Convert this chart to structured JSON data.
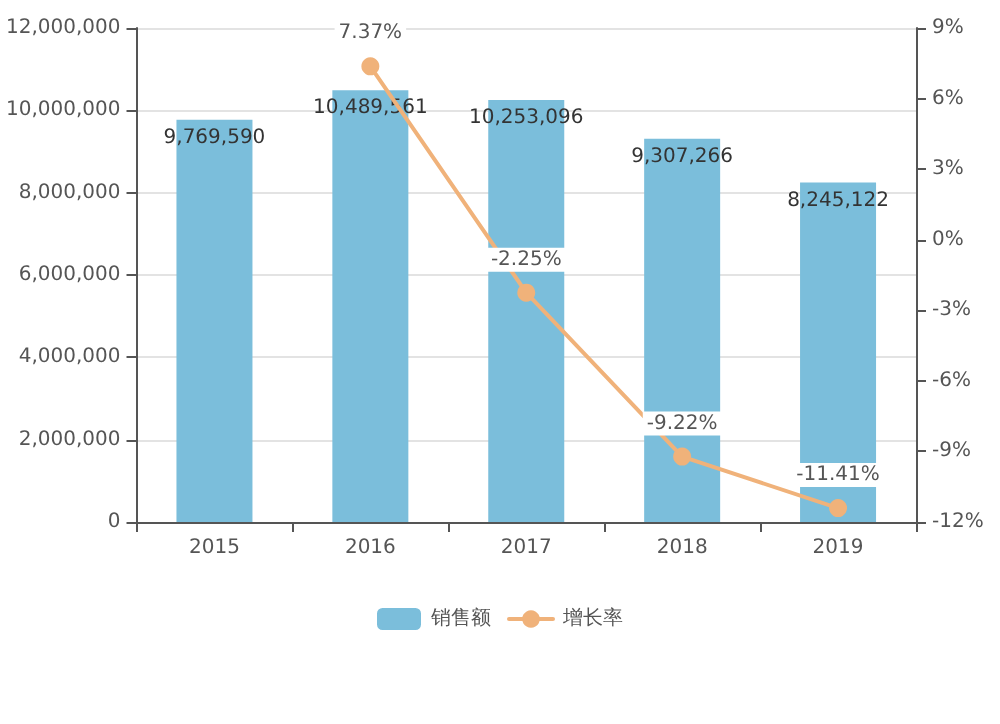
{
  "chart_data": {
    "type": "bar",
    "categories": [
      "2015",
      "2016",
      "2017",
      "2018",
      "2019"
    ],
    "series": [
      {
        "name": "销售额",
        "color": "#7bbedb",
        "values": [
          9769590,
          10489561,
          10253096,
          9307266,
          8245122
        ],
        "value_labels": [
          "9,769,590",
          "10,489,561",
          "10,253,096",
          "9,307,266",
          "8,245,122"
        ]
      },
      {
        "name": "增长率",
        "type": "line",
        "axis": "y2",
        "color": "#f0b27a",
        "values": [
          null,
          7.37,
          -2.25,
          -9.22,
          -11.41
        ],
        "value_labels": [
          null,
          "7.37%",
          "-2.25%",
          "-9.22%",
          "-11.41%"
        ]
      }
    ],
    "ylim": [
      0,
      12000000
    ],
    "yticks": [
      {
        "value": 0,
        "label": "0"
      },
      {
        "value": 2000000,
        "label": "2,000,000"
      },
      {
        "value": 4000000,
        "label": "4,000,000"
      },
      {
        "value": 6000000,
        "label": "6,000,000"
      },
      {
        "value": 8000000,
        "label": "8,000,000"
      },
      {
        "value": 10000000,
        "label": "10,000,000"
      },
      {
        "value": 12000000,
        "label": "12,000,000"
      }
    ],
    "y2lim": [
      -12,
      9
    ],
    "y2ticks": [
      {
        "value": -12,
        "label": "-12%"
      },
      {
        "value": -9,
        "label": "-9%"
      },
      {
        "value": -6,
        "label": "-6%"
      },
      {
        "value": -3,
        "label": "-3%"
      },
      {
        "value": 0,
        "label": "0%"
      },
      {
        "value": 3,
        "label": "3%"
      },
      {
        "value": 6,
        "label": "6%"
      },
      {
        "value": 9,
        "label": "9%"
      }
    ],
    "grid": "y",
    "legend": "bottom",
    "marker": "circle"
  }
}
